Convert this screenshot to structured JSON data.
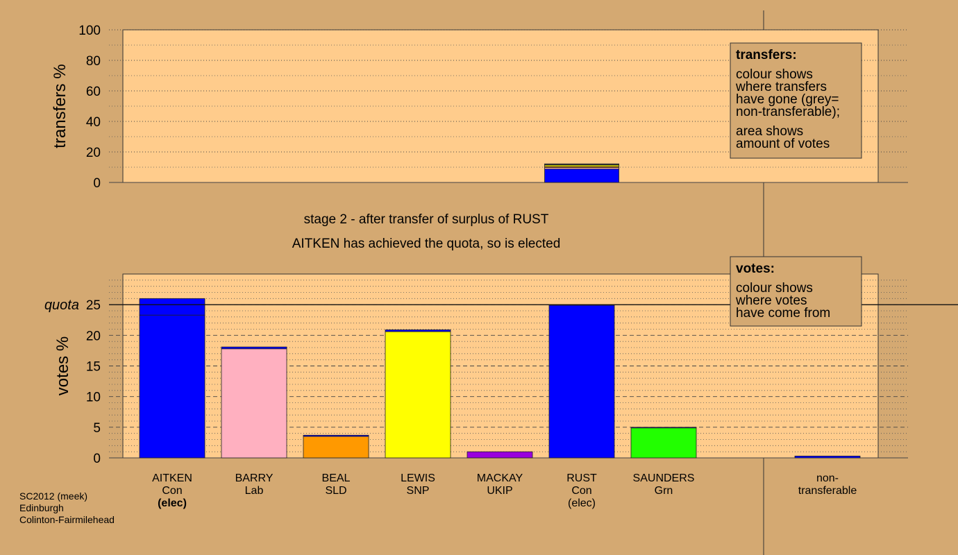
{
  "chart_data": [
    {
      "type": "bar",
      "stacked": true,
      "ylabel": "transfers %",
      "ylim": [
        0,
        100
      ],
      "yticks": [
        0,
        20,
        40,
        60,
        80,
        100
      ],
      "minor_yticks": [
        10,
        30,
        50,
        70,
        90
      ],
      "grid": "dotted",
      "series": [
        {
          "color": "#0000ff",
          "values": [
            null,
            null,
            null,
            null,
            null,
            8.8,
            null,
            null,
            null
          ]
        },
        {
          "color": "#ffb0c0",
          "values": [
            null,
            null,
            null,
            null,
            null,
            1.0,
            null,
            null,
            null
          ]
        },
        {
          "color": "#ff9900",
          "values": [
            null,
            null,
            null,
            null,
            null,
            0.7,
            null,
            null,
            null
          ]
        },
        {
          "color": "#ffff00",
          "values": [
            null,
            null,
            null,
            null,
            null,
            1.0,
            null,
            null,
            null
          ]
        },
        {
          "color": "#22ff00",
          "values": [
            null,
            null,
            null,
            null,
            null,
            0.4,
            null,
            null,
            null
          ]
        },
        {
          "color": "#999999",
          "values": [
            null,
            null,
            null,
            null,
            null,
            0.3,
            null,
            null,
            null
          ]
        }
      ],
      "note": {
        "heading": "transfers:",
        "paragraphs": [
          [
            "colour shows",
            "where transfers",
            "have gone (grey=",
            "non-transferable);"
          ],
          [
            "area shows",
            "amount of votes"
          ]
        ]
      }
    },
    {
      "type": "bar",
      "stacked": true,
      "title": "stage 2 - after transfer of surplus of RUST",
      "subtitle": "AITKEN has achieved the quota, so is elected",
      "ylabel": "votes %",
      "ylim": [
        0,
        30
      ],
      "yticks": [
        0,
        5,
        10,
        15,
        20,
        25
      ],
      "minor_yticks": [
        1,
        2,
        3,
        4,
        6,
        7,
        8,
        9,
        11,
        12,
        13,
        14,
        16,
        17,
        18,
        19,
        21,
        22,
        23,
        24,
        26,
        27,
        28,
        29
      ],
      "grid": "dashed",
      "quota": 25,
      "quota_label": "quota",
      "categories": [
        "AITKEN",
        "BARRY",
        "BEAL",
        "LEWIS",
        "MACKAY",
        "RUST",
        "SAUNDERS",
        null,
        "non-"
      ],
      "parties": [
        "Con",
        "Lab",
        "SLD",
        "SNP",
        "UKIP",
        "Con",
        "Grn",
        null,
        "transferable"
      ],
      "status": [
        "(elec)",
        null,
        null,
        null,
        null,
        "(elec)",
        null,
        null,
        null
      ],
      "status_bold": [
        true,
        false,
        false,
        false,
        false,
        false,
        false,
        false,
        false
      ],
      "series": [
        {
          "colors": [
            "#0000ff",
            "#ffb0c0",
            "#ff9900",
            "#ffff00",
            "#9900dd",
            "#0000ff",
            "#22ff00",
            null,
            "#0000ff"
          ],
          "values": [
            23.3,
            17.8,
            3.5,
            20.6,
            1.0,
            24.9,
            4.9,
            null,
            null
          ]
        },
        {
          "color": "#0000ff",
          "values": [
            2.7,
            0.3,
            0.2,
            0.3,
            null,
            null,
            0.1,
            null,
            0.3
          ]
        }
      ],
      "note": {
        "heading": "votes:",
        "paragraphs": [
          [
            "colour shows",
            "where votes",
            "have come from"
          ]
        ]
      }
    }
  ],
  "footer": [
    "SC2012 (meek)",
    "Edinburgh",
    "Colinton-Fairmilehead"
  ]
}
